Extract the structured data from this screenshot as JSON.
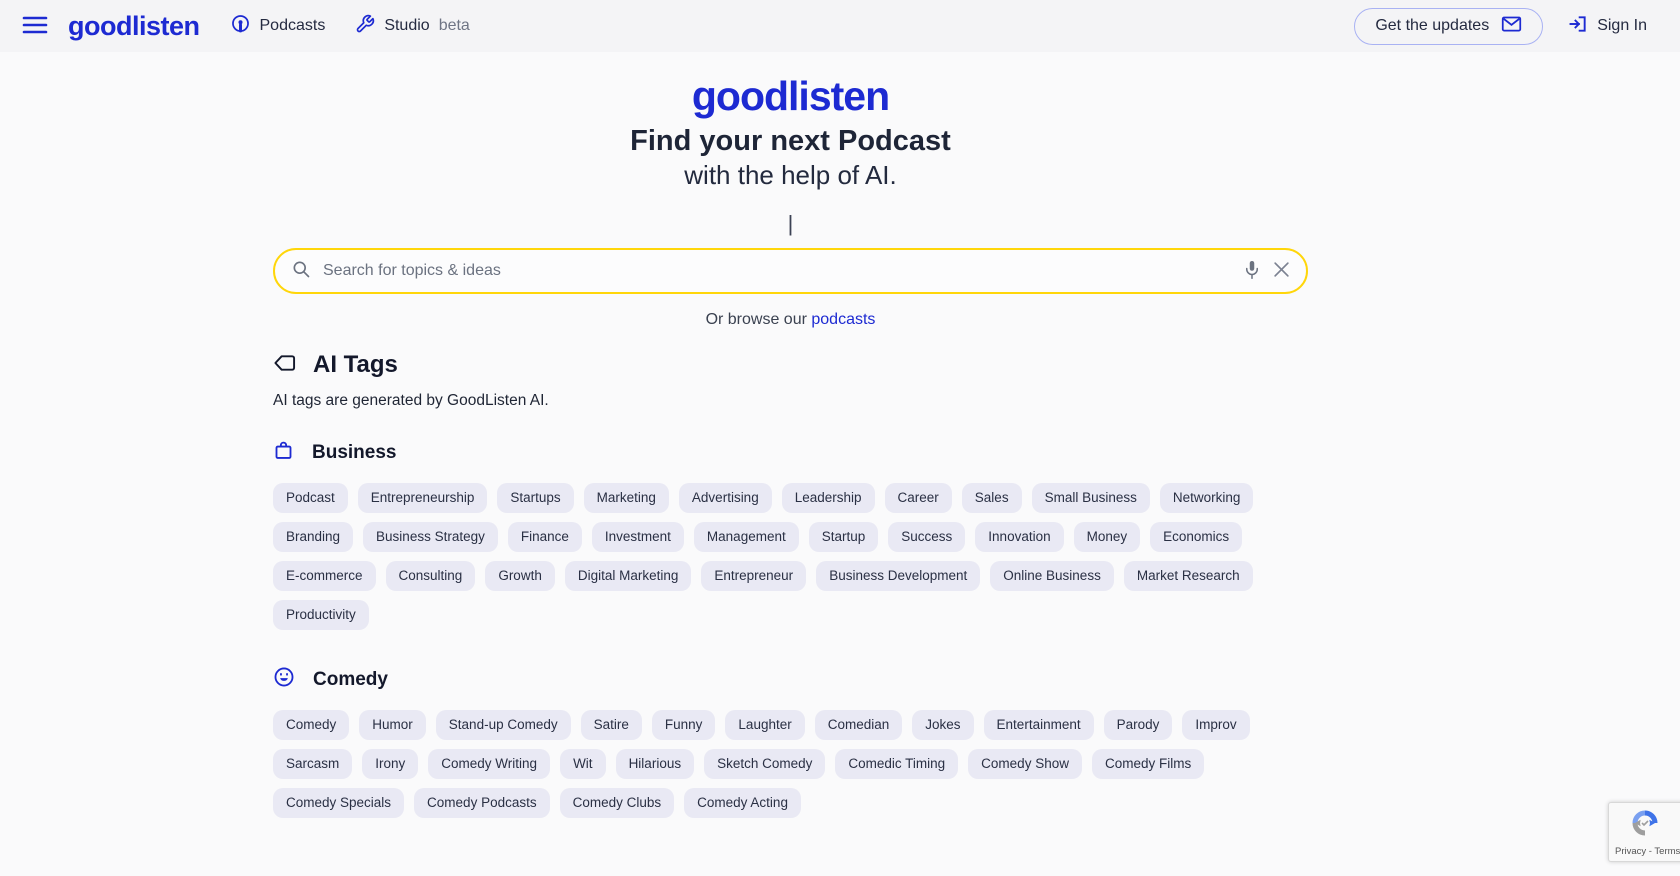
{
  "navbar": {
    "logo": "goodlisten",
    "podcasts_label": "Podcasts",
    "studio_label": "Studio",
    "studio_badge": "beta",
    "get_updates_label": "Get the updates",
    "sign_in_label": "Sign In"
  },
  "hero": {
    "logo": "goodlisten",
    "title": "Find your next Podcast",
    "subtitle": "with the help of AI.",
    "typing_cursor": "|",
    "search": {
      "placeholder": "Search for topics & ideas",
      "value": ""
    },
    "browse_prefix": "Or browse our ",
    "browse_link_label": "podcasts"
  },
  "ai_tags": {
    "title": "AI Tags",
    "subtitle": "AI tags are generated by GoodListen AI.",
    "sections": [
      {
        "name": "Business",
        "icon": "briefcase-icon",
        "tags": [
          "Podcast",
          "Entrepreneurship",
          "Startups",
          "Marketing",
          "Advertising",
          "Leadership",
          "Career",
          "Sales",
          "Small Business",
          "Networking",
          "Branding",
          "Business Strategy",
          "Finance",
          "Investment",
          "Management",
          "Startup",
          "Success",
          "Innovation",
          "Money",
          "Economics",
          "E-commerce",
          "Consulting",
          "Growth",
          "Digital Marketing",
          "Entrepreneur",
          "Business Development",
          "Online Business",
          "Market Research",
          "Productivity"
        ]
      },
      {
        "name": "Comedy",
        "icon": "smiley-icon",
        "tags": [
          "Comedy",
          "Humor",
          "Stand-up Comedy",
          "Satire",
          "Funny",
          "Laughter",
          "Comedian",
          "Jokes",
          "Entertainment",
          "Parody",
          "Improv",
          "Sarcasm",
          "Irony",
          "Comedy Writing",
          "Wit",
          "Hilarious",
          "Sketch Comedy",
          "Comedic Timing",
          "Comedy Show",
          "Comedy Films",
          "Comedy Specials",
          "Comedy Podcasts",
          "Comedy Clubs",
          "Comedy Acting"
        ]
      }
    ]
  },
  "recaptcha": {
    "label": "Privacy - Terms"
  },
  "colors": {
    "brand_blue": "#1d2ad2",
    "accent_gold": "#ffd60a",
    "pill_bg": "#e9e9f4",
    "text_navy": "#222941",
    "navbar_bg": "#f4f4f6",
    "page_bg": "#fafafb"
  }
}
